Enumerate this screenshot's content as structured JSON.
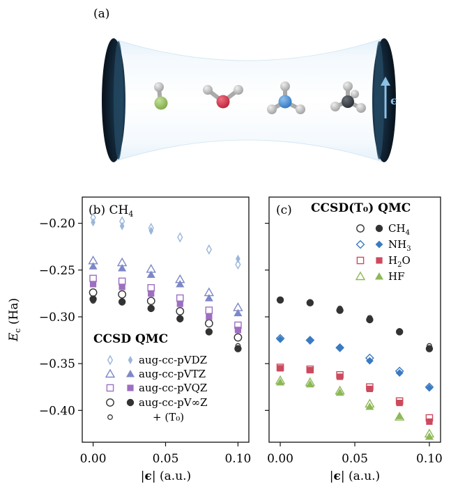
{
  "figure": {
    "panel_a_label": "(a)",
    "cavity": {
      "field_label": "ϵ",
      "molecules": [
        "HF",
        "H2O",
        "NH3",
        "CH4"
      ]
    }
  },
  "chart_data": [
    {
      "type": "scatter",
      "panel_label": "(b) CH",
      "panel_label_sub": "4",
      "method_label": "CCSD QMC",
      "xlabel_prefix": "|",
      "xlabel_eps": "ϵ",
      "xlabel_suffix": "| (a.u.)",
      "ylabel_main": "E",
      "ylabel_sub": "c",
      "ylabel_unit": " (Ha)",
      "xlim": [
        -0.0075,
        0.1075
      ],
      "ylim": [
        -0.434,
        -0.172
      ],
      "xticks": [
        0.0,
        0.05,
        0.1
      ],
      "xtick_labels": [
        "0.00",
        "0.05",
        "0.10"
      ],
      "yticks": [
        -0.2,
        -0.25,
        -0.3,
        -0.35,
        -0.4
      ],
      "ytick_labels": [
        "−0.20",
        "−0.25",
        "−0.30",
        "−0.35",
        "−0.40"
      ],
      "x": [
        0.0,
        0.02,
        0.04,
        0.06,
        0.08,
        0.1
      ],
      "series": [
        {
          "name": "aug-cc-pVDZ",
          "method": "CCSD",
          "marker": "thin-diamond",
          "filled": false,
          "color": "#9bb6da",
          "values": [
            -0.194,
            -0.198,
            -0.205,
            -0.215,
            -0.228,
            -0.244
          ]
        },
        {
          "name": "aug-cc-pVDZ",
          "method": "QMC",
          "marker": "thin-diamond",
          "filled": true,
          "color": "#9bb6da",
          "values": [
            -0.199,
            -0.203,
            -0.208,
            null,
            null,
            -0.238
          ]
        },
        {
          "name": "aug-cc-pVTZ",
          "method": "CCSD",
          "marker": "triangle",
          "filled": false,
          "color": "#7d87c8",
          "values": [
            -0.24,
            -0.242,
            -0.249,
            -0.26,
            -0.274,
            -0.29
          ]
        },
        {
          "name": "aug-cc-pVTZ",
          "method": "QMC",
          "marker": "triangle",
          "filled": true,
          "color": "#7d87c8",
          "values": [
            -0.246,
            -0.248,
            -0.255,
            -0.265,
            -0.28,
            -0.296
          ]
        },
        {
          "name": "aug-cc-pVQZ",
          "method": "CCSD",
          "marker": "square",
          "filled": false,
          "color": "#9e6ec0",
          "values": [
            -0.259,
            -0.262,
            -0.269,
            -0.28,
            -0.293,
            -0.309
          ]
        },
        {
          "name": "aug-cc-pVQZ",
          "method": "QMC",
          "marker": "square",
          "filled": true,
          "color": "#9e6ec0",
          "values": [
            -0.265,
            -0.268,
            -0.275,
            -0.286,
            -0.3,
            -0.314
          ]
        },
        {
          "name": "aug-cc-pV∞Z",
          "method": "CCSD",
          "marker": "circle",
          "filled": false,
          "color": "#333333",
          "values": [
            -0.274,
            -0.276,
            -0.283,
            -0.294,
            -0.307,
            -0.322
          ]
        },
        {
          "name": "aug-cc-pV∞Z",
          "method": "QMC",
          "marker": "circle",
          "filled": true,
          "color": "#333333",
          "values": [
            -0.281,
            -0.284,
            -0.291,
            -0.302,
            -0.316,
            -0.334
          ]
        },
        {
          "name": "+ (T₀)",
          "method": "CCSD(T₀)",
          "marker": "small-circle",
          "filled": false,
          "color": "#333333",
          "values": [
            -0.283,
            -0.285,
            -0.292,
            -0.303,
            -0.316,
            -0.331
          ]
        }
      ],
      "legend": {
        "entries": [
          {
            "label": "aug-cc-pVDZ",
            "marker": "thin-diamond",
            "color": "#9bb6da"
          },
          {
            "label": "aug-cc-pVTZ",
            "marker": "triangle",
            "color": "#7d87c8"
          },
          {
            "label": "aug-cc-pVQZ",
            "marker": "square",
            "color": "#9e6ec0"
          },
          {
            "label": "aug-cc-pV∞Z",
            "marker": "circle",
            "color": "#333333"
          },
          {
            "label": "+ (T₀)",
            "marker": "small-circle",
            "color": "#333333"
          }
        ]
      }
    },
    {
      "type": "scatter",
      "panel_label": "(c)",
      "method_label": "CCSD(T₀) QMC",
      "xlabel_prefix": "|",
      "xlabel_eps": "ϵ",
      "xlabel_suffix": "| (a.u.)",
      "xlim": [
        -0.0075,
        0.1075
      ],
      "ylim": [
        -0.434,
        -0.172
      ],
      "xticks": [
        0.0,
        0.05,
        0.1
      ],
      "xtick_labels": [
        "0.00",
        "0.05",
        "0.10"
      ],
      "x": [
        0.0,
        0.02,
        0.04,
        0.06,
        0.08,
        0.1
      ],
      "series": [
        {
          "name": "CH",
          "name_sub": "4",
          "method": "CCSD(T₀)",
          "marker": "small-circle",
          "filled": false,
          "color": "#333333",
          "values": [
            -0.282,
            -0.284,
            -0.291,
            -0.301,
            -0.315,
            -0.331
          ]
        },
        {
          "name": "CH",
          "name_sub": "4",
          "method": "QMC",
          "marker": "circle",
          "filled": true,
          "color": "#333333",
          "values": [
            -0.282,
            -0.285,
            -0.293,
            -0.303,
            -0.316,
            -0.334
          ]
        },
        {
          "name": "NH",
          "name_sub": "3",
          "method": "CCSD(T₀)",
          "marker": "diamond",
          "filled": false,
          "color": "#3a7ac0",
          "values": [
            -0.323,
            -0.325,
            -0.333,
            -0.344,
            -0.358,
            -0.375
          ]
        },
        {
          "name": "NH",
          "name_sub": "3",
          "method": "QMC",
          "marker": "diamond",
          "filled": true,
          "color": "#3a7ac0",
          "values": [
            -0.324,
            -0.325,
            -0.333,
            -0.347,
            -0.36,
            -0.376
          ]
        },
        {
          "name": "H",
          "name_sub": "2",
          "name_suffix": "O",
          "method": "CCSD(T₀)",
          "marker": "square",
          "filled": false,
          "color": "#cc4a5e",
          "values": [
            -0.354,
            -0.356,
            -0.362,
            -0.375,
            -0.39,
            -0.408
          ]
        },
        {
          "name": "H",
          "name_sub": "2",
          "name_suffix": "O",
          "method": "QMC",
          "marker": "square",
          "filled": true,
          "color": "#cc4a5e",
          "values": [
            -0.355,
            -0.357,
            -0.364,
            -0.377,
            -0.392,
            -0.412
          ]
        },
        {
          "name": "HF",
          "method": "CCSD(T₀)",
          "marker": "triangle",
          "filled": false,
          "color": "#8db857",
          "values": [
            -0.368,
            -0.37,
            -0.379,
            -0.393,
            -0.407,
            -0.425
          ]
        },
        {
          "name": "HF",
          "method": "QMC",
          "marker": "triangle",
          "filled": true,
          "color": "#8db857",
          "values": [
            -0.37,
            -0.372,
            -0.381,
            -0.396,
            -0.406,
            -0.428
          ]
        }
      ],
      "legend": {
        "entries": [
          {
            "label": "CH",
            "sub": "4",
            "marker": "circle",
            "color": "#333333"
          },
          {
            "label": "NH",
            "sub": "3",
            "marker": "diamond",
            "color": "#3a7ac0"
          },
          {
            "label": "H",
            "sub": "2",
            "suffix": "O",
            "marker": "square",
            "color": "#cc4a5e"
          },
          {
            "label": "HF",
            "marker": "triangle",
            "color": "#8db857"
          }
        ]
      }
    }
  ]
}
